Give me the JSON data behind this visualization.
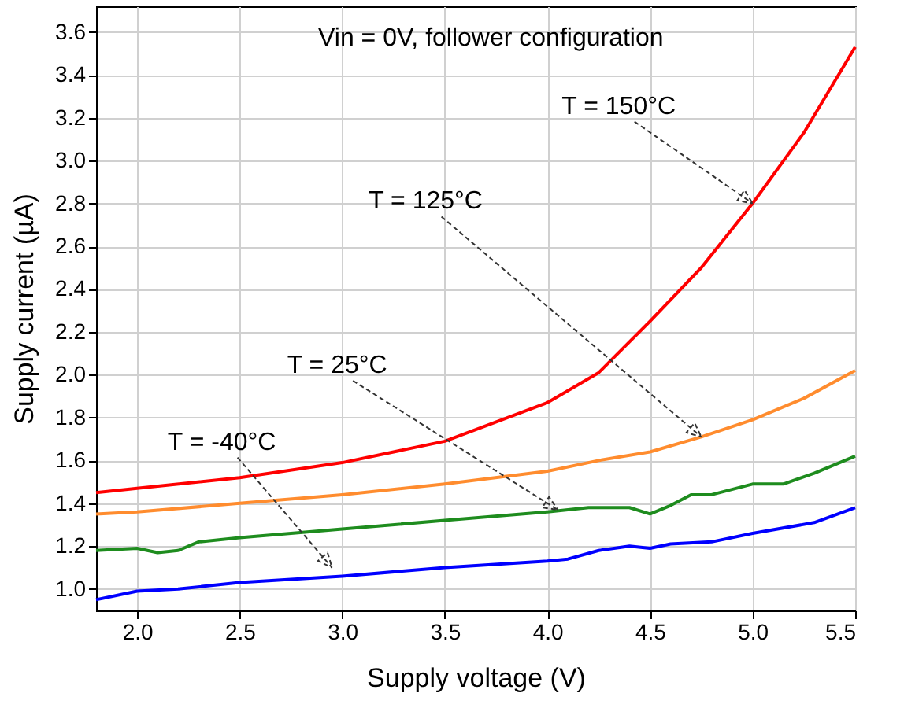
{
  "chart_data": {
    "type": "line",
    "xlabel": "Supply voltage (V)",
    "ylabel": "Supply current (µA)",
    "xlim": [
      1.8,
      5.5
    ],
    "ylim": [
      0.9,
      3.72
    ],
    "xticks": [
      {
        "value": 2,
        "label": "2.0"
      },
      2.5,
      {
        "value": 3,
        "label": "3.0"
      },
      3.5,
      {
        "value": 4,
        "label": "4.0"
      },
      4.5,
      {
        "value": 5,
        "label": "5.0"
      },
      5.5
    ],
    "yticks": [
      {
        "value": 1,
        "label": "1.0"
      },
      1.2,
      1.4,
      1.6,
      1.8,
      {
        "value": 2,
        "label": "2.0"
      },
      2.2,
      2.4,
      2.6,
      2.8,
      {
        "value": 3,
        "label": "3.0"
      },
      3.2,
      3.4,
      3.6
    ],
    "grid": true,
    "annotations": [
      "Vin = 0V, follower configuration",
      {
        "text": "T = 150°C",
        "x": 5.0,
        "y": 2.8
      },
      {
        "text": "T = 125°C",
        "x": 4.75,
        "y": 1.71
      },
      {
        "text": "T = 25°C",
        "x": 4.05,
        "y": 1.37
      },
      {
        "text": "T = -40°C",
        "x": 2.95,
        "y": 1.1
      }
    ],
    "series": [
      {
        "color": "#ff0000",
        "x": [
          1.8,
          2.0,
          2.5,
          3.0,
          3.5,
          4.0,
          4.25,
          4.5,
          4.75,
          5.0,
          5.25,
          5.5
        ],
        "values": [
          1.45,
          1.47,
          1.52,
          1.59,
          1.69,
          1.87,
          2.01,
          2.25,
          2.5,
          2.8,
          3.13,
          3.53
        ]
      },
      {
        "color": "#ff8c2e",
        "x": [
          1.8,
          2.0,
          2.5,
          3.0,
          3.5,
          4.0,
          4.25,
          4.5,
          4.75,
          5.0,
          5.25,
          5.5
        ],
        "values": [
          1.35,
          1.36,
          1.4,
          1.44,
          1.49,
          1.55,
          1.6,
          1.64,
          1.71,
          1.79,
          1.89,
          2.02
        ]
      },
      {
        "color": "#1e8c1e",
        "x": [
          1.8,
          2.0,
          2.1,
          2.2,
          2.3,
          2.5,
          3.0,
          3.5,
          4.0,
          4.2,
          4.4,
          4.5,
          4.6,
          4.7,
          4.8,
          5.0,
          5.15,
          5.3,
          5.5
        ],
        "values": [
          1.18,
          1.19,
          1.17,
          1.18,
          1.22,
          1.24,
          1.28,
          1.32,
          1.36,
          1.38,
          1.38,
          1.35,
          1.39,
          1.44,
          1.44,
          1.49,
          1.49,
          1.54,
          1.62
        ]
      },
      {
        "color": "#0000ff",
        "x": [
          1.8,
          2.0,
          2.2,
          2.5,
          3.0,
          3.5,
          4.0,
          4.1,
          4.25,
          4.4,
          4.5,
          4.6,
          4.8,
          5.0,
          5.3,
          5.5
        ],
        "values": [
          0.95,
          0.99,
          1.0,
          1.03,
          1.06,
          1.1,
          1.13,
          1.14,
          1.18,
          1.2,
          1.19,
          1.21,
          1.22,
          1.26,
          1.31,
          1.38
        ]
      }
    ]
  }
}
